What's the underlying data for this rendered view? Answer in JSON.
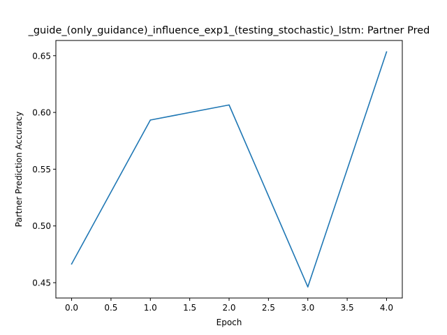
{
  "chart_data": {
    "type": "line",
    "title": "_guide_(only_guidance)_influence_exp1_(testing_stochastic)_lstm: Partner Pred",
    "xlabel": "Epoch",
    "ylabel": "Partner Prediction Accuracy",
    "xlim": [
      -0.2,
      4.2
    ],
    "ylim": [
      0.4365,
      0.6634
    ],
    "x_ticks": [
      "0.0",
      "0.5",
      "1.0",
      "1.5",
      "2.0",
      "2.5",
      "3.0",
      "3.5",
      "4.0"
    ],
    "y_ticks": [
      "0.45",
      "0.50",
      "0.55",
      "0.60",
      "0.65"
    ],
    "grid": false,
    "series": [
      {
        "x": [
          0,
          1,
          2,
          3,
          4
        ],
        "values": [
          0.4665,
          0.5933,
          0.6066,
          0.4463,
          0.6533
        ],
        "color": "#1f77b4"
      }
    ]
  }
}
